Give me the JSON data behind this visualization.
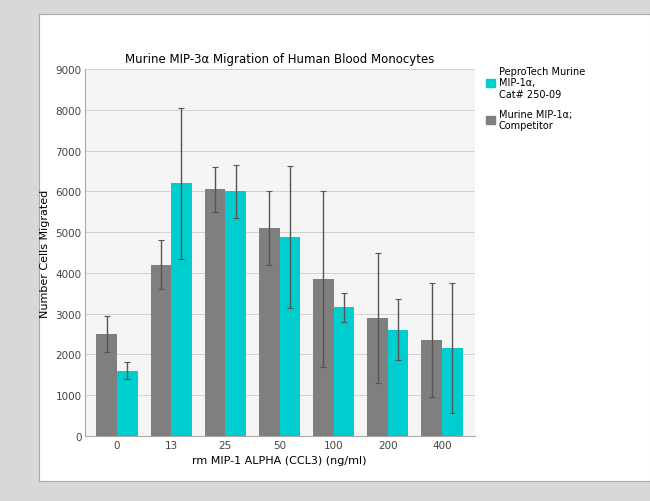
{
  "title": "Murine MIP-3α Migration of Human Blood Monocytes",
  "xlabel": "rm MIP-1 ALPHA (CCL3) (ng/ml)",
  "ylabel": "Number Cells Migrated",
  "categories": [
    "0",
    "13",
    "25",
    "50",
    "100",
    "200",
    "400"
  ],
  "peprotech_values": [
    2500,
    4200,
    6050,
    5100,
    3850,
    2900,
    2350
  ],
  "peprotech_errors": [
    450,
    600,
    550,
    900,
    2150,
    1600,
    1400
  ],
  "competitor_values": [
    1600,
    6200,
    6000,
    4875,
    3150,
    2600,
    2150
  ],
  "competitor_errors": [
    200,
    1850,
    650,
    1750,
    350,
    750,
    1600
  ],
  "peprotech_color": "#7f7f7f",
  "competitor_color": "#00CDCD",
  "legend_label_1": "PeproTech Murine\nMIP-1α,\nCat# 250-09",
  "legend_label_2": "Murine MIP-1α;\nCompetitor",
  "ylim": [
    0,
    9000
  ],
  "yticks": [
    0,
    1000,
    2000,
    3000,
    4000,
    5000,
    6000,
    7000,
    8000,
    9000
  ],
  "panel_bg": "#ffffff",
  "figure_bg": "#d8d8d8",
  "plot_bg": "#f5f5f5",
  "grid_color": "#ffffff",
  "bar_width": 0.38,
  "title_fontsize": 8.5,
  "axis_label_fontsize": 8.0,
  "tick_fontsize": 7.5,
  "legend_fontsize": 7.0,
  "legend_title": "PeproTech Murine\nMIP-1α,\nCat# 250-09"
}
